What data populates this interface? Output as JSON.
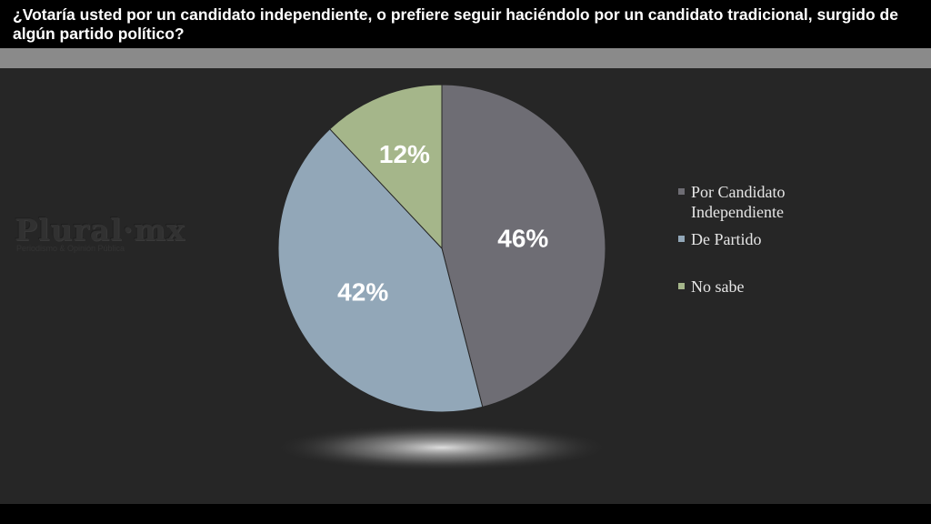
{
  "title": "¿Votaría usted por un candidato independiente, o prefiere seguir haciéndolo por un candidato tradicional, surgido de algún partido político?",
  "watermark": {
    "name": "Plural·mx",
    "tagline": "Periodismo & Opinión Pública"
  },
  "chart_data": {
    "type": "pie",
    "categories": [
      "Por Candidato Independiente",
      "De Partido",
      "No sabe"
    ],
    "values": [
      46,
      42,
      12
    ],
    "data_labels": [
      "46%",
      "42%",
      "12%"
    ],
    "colors": [
      "#6e6d74",
      "#92a7b8",
      "#a5b68a"
    ],
    "legend_position": "right",
    "start_angle": "12 o'clock, clockwise"
  }
}
